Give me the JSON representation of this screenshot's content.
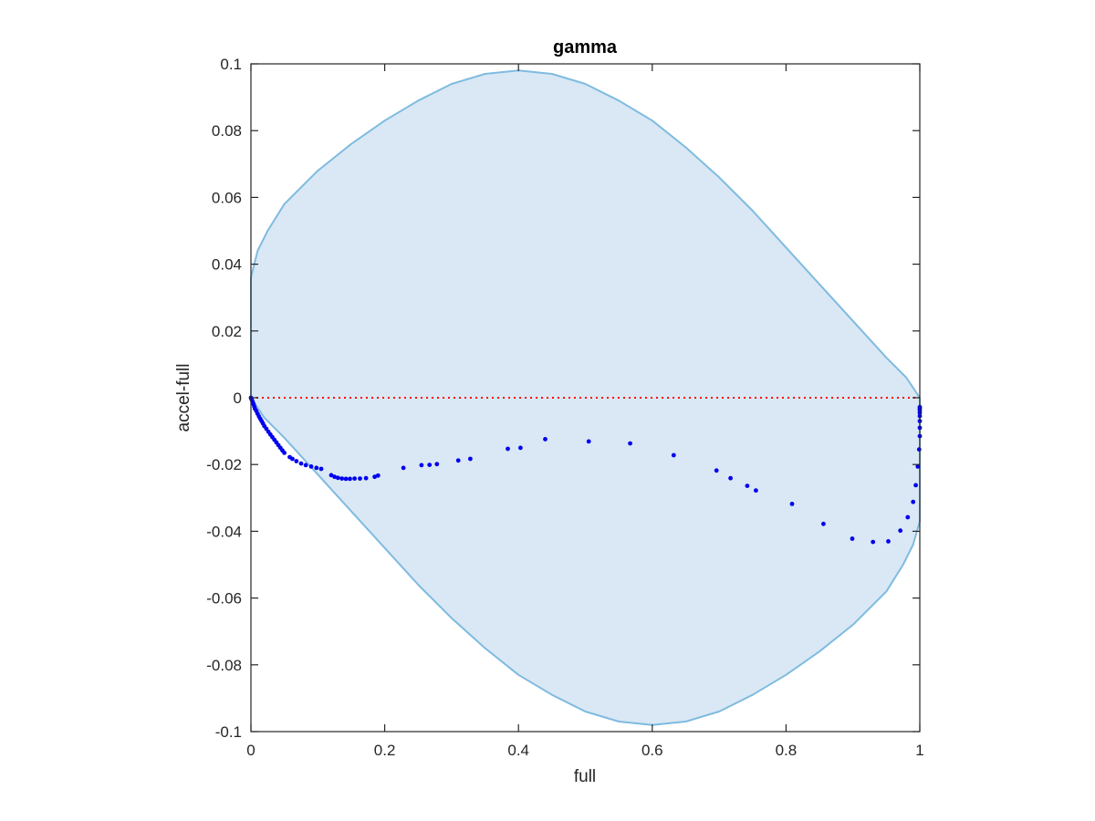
{
  "chart_data": {
    "type": "scatter",
    "title": "gamma",
    "xlabel": "full",
    "ylabel": "accel-full",
    "xlim": [
      0,
      1
    ],
    "ylim": [
      -0.1,
      0.1
    ],
    "x_ticks": [
      0,
      0.2,
      0.4,
      0.6,
      0.8,
      1
    ],
    "y_ticks": [
      -0.1,
      -0.08,
      -0.06,
      -0.04,
      -0.02,
      0,
      0.02,
      0.04,
      0.06,
      0.08,
      0.1
    ],
    "x_tick_labels": [
      "0",
      "0.2",
      "0.4",
      "0.6",
      "0.8",
      "1"
    ],
    "y_tick_labels": [
      "-0.1",
      "-0.08",
      "-0.06",
      "-0.04",
      "-0.02",
      "0",
      "0.02",
      "0.04",
      "0.06",
      "0.08",
      "0.1"
    ],
    "grid": false,
    "colors": {
      "region_fill": "#d9e8f4",
      "region_edge": "#7fbbe0",
      "points": "#0000ee",
      "reference_line": "#ff0000",
      "axes": "#262626"
    },
    "region": {
      "upper": [
        [
          0,
          0.036
        ],
        [
          0.01,
          0.044
        ],
        [
          0.025,
          0.05
        ],
        [
          0.05,
          0.058
        ],
        [
          0.1,
          0.068
        ],
        [
          0.15,
          0.076
        ],
        [
          0.2,
          0.083
        ],
        [
          0.25,
          0.089
        ],
        [
          0.3,
          0.094
        ],
        [
          0.35,
          0.097
        ],
        [
          0.4,
          0.098
        ],
        [
          0.45,
          0.097
        ],
        [
          0.5,
          0.094
        ],
        [
          0.55,
          0.089
        ],
        [
          0.6,
          0.083
        ],
        [
          0.65,
          0.075
        ],
        [
          0.7,
          0.066
        ],
        [
          0.75,
          0.056
        ],
        [
          0.8,
          0.045
        ],
        [
          0.85,
          0.034
        ],
        [
          0.9,
          0.023
        ],
        [
          0.95,
          0.012
        ],
        [
          0.98,
          0.006
        ],
        [
          1,
          0
        ]
      ],
      "lower": [
        [
          1,
          -0.037
        ],
        [
          0.99,
          -0.044
        ],
        [
          0.975,
          -0.05
        ],
        [
          0.95,
          -0.058
        ],
        [
          0.9,
          -0.068
        ],
        [
          0.85,
          -0.076
        ],
        [
          0.8,
          -0.083
        ],
        [
          0.75,
          -0.089
        ],
        [
          0.7,
          -0.094
        ],
        [
          0.65,
          -0.097
        ],
        [
          0.6,
          -0.098
        ],
        [
          0.55,
          -0.097
        ],
        [
          0.5,
          -0.094
        ],
        [
          0.45,
          -0.089
        ],
        [
          0.4,
          -0.083
        ],
        [
          0.35,
          -0.075
        ],
        [
          0.3,
          -0.066
        ],
        [
          0.25,
          -0.056
        ],
        [
          0.2,
          -0.045
        ],
        [
          0.15,
          -0.034
        ],
        [
          0.1,
          -0.023
        ],
        [
          0.05,
          -0.012
        ],
        [
          0.02,
          -0.006
        ],
        [
          0,
          0
        ]
      ]
    },
    "reference_line_y": 0,
    "points": [
      [
        0.0,
        0.0
      ],
      [
        0.001,
        -0.0005
      ],
      [
        0.002,
        -0.001
      ],
      [
        0.003,
        -0.0015
      ],
      [
        0.004,
        -0.002
      ],
      [
        0.005,
        -0.0027
      ],
      [
        0.006,
        -0.0033
      ],
      [
        0.008,
        -0.004
      ],
      [
        0.01,
        -0.0048
      ],
      [
        0.012,
        -0.0056
      ],
      [
        0.014,
        -0.0063
      ],
      [
        0.016,
        -0.007
      ],
      [
        0.018,
        -0.0077
      ],
      [
        0.02,
        -0.0085
      ],
      [
        0.023,
        -0.0093
      ],
      [
        0.026,
        -0.0102
      ],
      [
        0.029,
        -0.011
      ],
      [
        0.032,
        -0.0118
      ],
      [
        0.035,
        -0.0126
      ],
      [
        0.038,
        -0.0134
      ],
      [
        0.041,
        -0.0142
      ],
      [
        0.044,
        -0.015
      ],
      [
        0.047,
        -0.0158
      ],
      [
        0.05,
        -0.0165
      ],
      [
        0.058,
        -0.0178
      ],
      [
        0.062,
        -0.0183
      ],
      [
        0.068,
        -0.019
      ],
      [
        0.075,
        -0.0197
      ],
      [
        0.082,
        -0.0202
      ],
      [
        0.09,
        -0.0206
      ],
      [
        0.098,
        -0.021
      ],
      [
        0.105,
        -0.0213
      ],
      [
        0.12,
        -0.0232
      ],
      [
        0.125,
        -0.0237
      ],
      [
        0.13,
        -0.024
      ],
      [
        0.136,
        -0.0242
      ],
      [
        0.142,
        -0.0243
      ],
      [
        0.148,
        -0.0243
      ],
      [
        0.155,
        -0.0242
      ],
      [
        0.163,
        -0.0242
      ],
      [
        0.172,
        -0.0241
      ],
      [
        0.185,
        -0.0237
      ],
      [
        0.19,
        -0.0233
      ],
      [
        0.228,
        -0.021
      ],
      [
        0.255,
        -0.0202
      ],
      [
        0.267,
        -0.0201
      ],
      [
        0.278,
        -0.0199
      ],
      [
        0.31,
        -0.0188
      ],
      [
        0.328,
        -0.0183
      ],
      [
        0.384,
        -0.0153
      ],
      [
        0.403,
        -0.015
      ],
      [
        0.44,
        -0.0124
      ],
      [
        0.505,
        -0.0131
      ],
      [
        0.567,
        -0.0137
      ],
      [
        0.632,
        -0.0172
      ],
      [
        0.696,
        -0.0218
      ],
      [
        0.717,
        -0.0241
      ],
      [
        0.742,
        -0.0264
      ],
      [
        0.755,
        -0.0278
      ],
      [
        0.809,
        -0.0318
      ],
      [
        0.856,
        -0.0378
      ],
      [
        0.899,
        -0.0422
      ],
      [
        0.93,
        -0.0432
      ],
      [
        0.953,
        -0.043
      ],
      [
        0.971,
        -0.0398
      ],
      [
        0.982,
        -0.0358
      ],
      [
        0.99,
        -0.0312
      ],
      [
        0.994,
        -0.0262
      ],
      [
        0.997,
        -0.0206
      ],
      [
        0.999,
        -0.0155
      ],
      [
        1.0,
        -0.0115
      ],
      [
        1.0,
        -0.009
      ],
      [
        1.0,
        -0.007
      ],
      [
        1.0,
        -0.0055
      ],
      [
        1.0,
        -0.0045
      ],
      [
        1.0,
        -0.0038
      ],
      [
        1.0,
        -0.0032
      ],
      [
        1.0,
        -0.0028
      ]
    ]
  }
}
